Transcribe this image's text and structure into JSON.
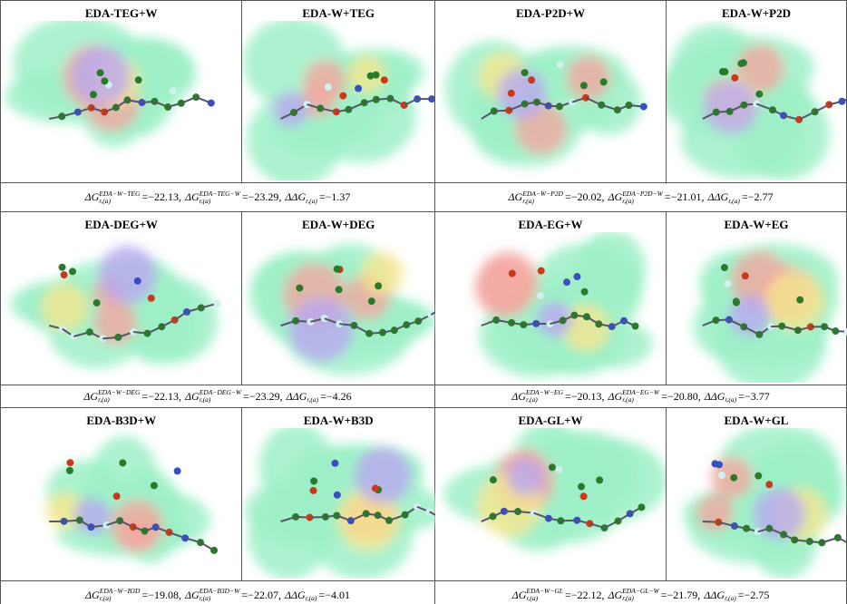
{
  "rows": [
    {
      "groups": [
        {
          "panels": [
            {
              "title": "EDA-TEG+W"
            },
            {
              "title": "EDA-W+TEG"
            }
          ],
          "caption": [
            {
              "sym": "ΔG",
              "sub": "r,(a)",
              "sup": "EDA−W−TEG",
              "val": "=−22.13,"
            },
            {
              "sym": "ΔG",
              "sub": "r,(a)",
              "sup": "EDA−TEG−W",
              "val": "=−23.29,"
            },
            {
              "sym": "ΔΔG",
              "sub": "r,(a)",
              "val": "=−1.37"
            }
          ]
        },
        {
          "panels": [
            {
              "title": "EDA-P2D+W"
            },
            {
              "title": "EDA-W+P2D"
            }
          ],
          "caption": [
            {
              "sym": "ΔG",
              "sub": "r,(a)",
              "sup": "EDA−W−P2D",
              "val": "=−20.02,"
            },
            {
              "sym": "ΔG",
              "sub": "r,(a)",
              "sup": "EDA−P2D−W",
              "val": "=−21.01,"
            },
            {
              "sym": "ΔΔG",
              "sub": "r,(a)",
              "val": "=−2.77"
            }
          ]
        }
      ]
    },
    {
      "groups": [
        {
          "panels": [
            {
              "title": "EDA-DEG+W"
            },
            {
              "title": "EDA-W+DEG"
            }
          ],
          "caption": [
            {
              "sym": "ΔG",
              "sub": "r,(a)",
              "sup": "EDA−W−DEG",
              "val": "=−22.13,"
            },
            {
              "sym": "ΔG",
              "sub": "r,(a)",
              "sup": "EDA−DEG−W",
              "val": "=−23.29,"
            },
            {
              "sym": "ΔΔG",
              "sub": "r,(a)",
              "val": "=−4.26"
            }
          ]
        },
        {
          "panels": [
            {
              "title": "EDA-EG+W"
            },
            {
              "title": "EDA-W+EG"
            }
          ],
          "caption": [
            {
              "sym": "ΔG",
              "sub": "r,(a)",
              "sup": "EDA−W−EG",
              "val": "=−20.13,"
            },
            {
              "sym": "ΔG",
              "sub": "r,(a)",
              "sup": "EDA−EG−W",
              "val": "=−20.80,"
            },
            {
              "sym": "ΔΔG",
              "sub": "r,(a)",
              "val": "=−3.77"
            }
          ]
        }
      ]
    },
    {
      "groups": [
        {
          "panels": [
            {
              "title": "EDA-B3D+W"
            },
            {
              "title": "EDA-W+B3D"
            }
          ],
          "caption": [
            {
              "sym": "ΔG",
              "sub": "r,(a)",
              "sup": "EDA−W−B3D",
              "val": "=−19.08,"
            },
            {
              "sym": "ΔG",
              "sub": "r,(a)",
              "sup": "EDA−B3D−W",
              "val": "=−22.07,"
            },
            {
              "sym": "ΔΔG",
              "sub": "r,(a)",
              "val": "=−4.01"
            }
          ]
        },
        {
          "panels": [
            {
              "title": "EDA-GL+W"
            },
            {
              "title": "EDA-W+GL"
            }
          ],
          "caption": [
            {
              "sym": "ΔG",
              "sub": "r,(a)",
              "sup": "EDA−W−GL",
              "val": "=−22.12,"
            },
            {
              "sym": "ΔG",
              "sub": "r,(a)",
              "sup": "EDA−GL−W",
              "val": "=−21.79,"
            },
            {
              "sym": "ΔΔG",
              "sub": "r,(a)",
              "val": "=−2.75"
            }
          ]
        }
      ]
    }
  ]
}
